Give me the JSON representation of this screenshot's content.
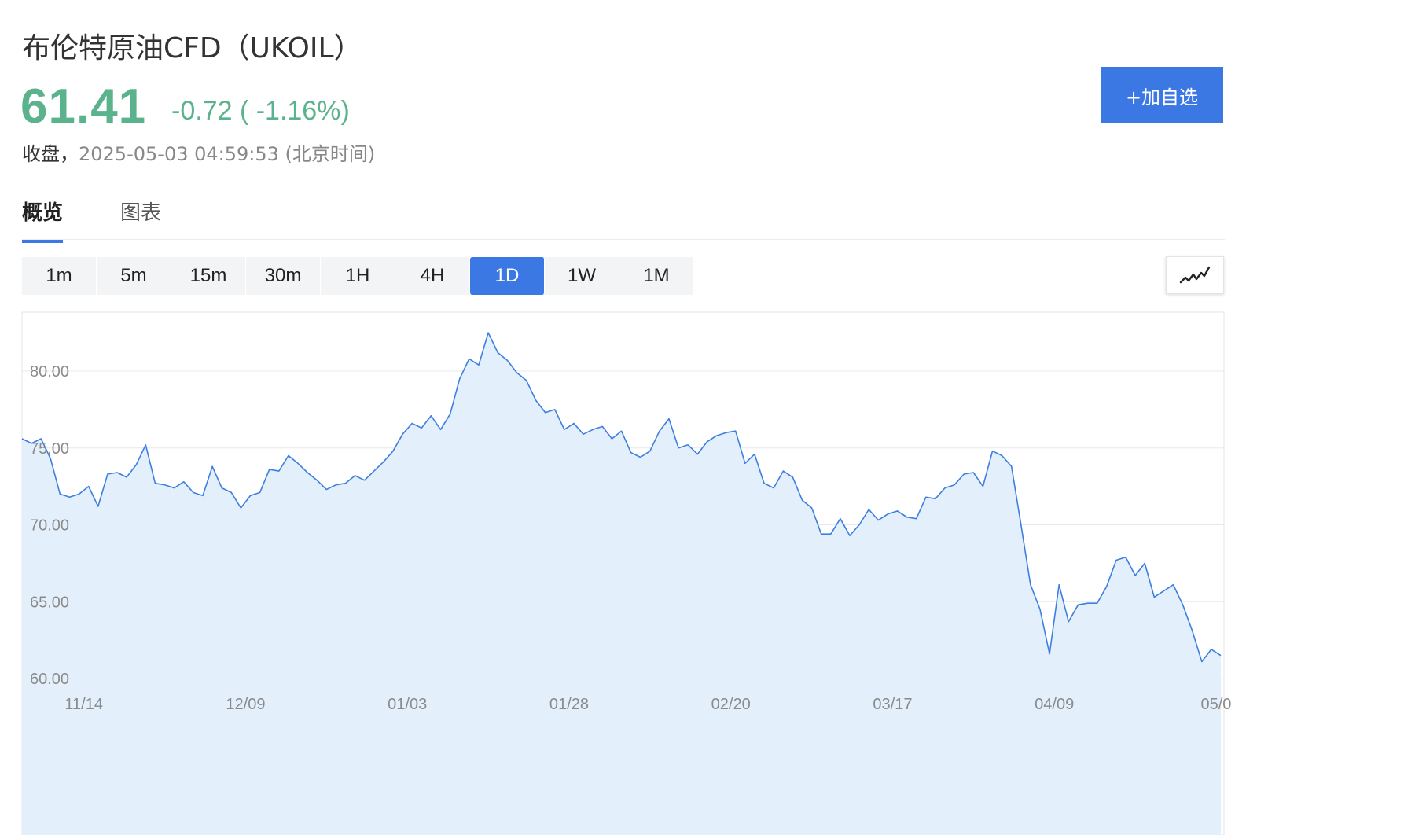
{
  "header": {
    "title": "布伦特原油CFD（UKOIL）",
    "price": "61.41",
    "change": "-0.72 ( -1.16%)",
    "status_label": "收盘，",
    "timestamp": "2025-05-03 04:59:53 (北京时间)",
    "add_watchlist_label": "+加自选"
  },
  "colors": {
    "accent": "#3b78e3",
    "price_down": "#5ab38d",
    "line": "#3d7fe0",
    "fill": "#e3effb"
  },
  "tabs": [
    {
      "label": "概览",
      "active": true
    },
    {
      "label": "图表",
      "active": false
    }
  ],
  "intervals": [
    {
      "label": "1m"
    },
    {
      "label": "5m"
    },
    {
      "label": "15m"
    },
    {
      "label": "30m"
    },
    {
      "label": "1H"
    },
    {
      "label": "4H"
    },
    {
      "label": "1D",
      "active": true
    },
    {
      "label": "1W"
    },
    {
      "label": "1M"
    }
  ],
  "chart_type_icon": "line-chart-icon",
  "chart_data": {
    "type": "area",
    "title": "",
    "xlabel": "",
    "ylabel": "",
    "ylim": [
      58.5,
      83.8
    ],
    "grid": true,
    "y_ticks": [
      "80.00",
      "75.00",
      "70.00",
      "65.00",
      "60.00"
    ],
    "y_tick_values": [
      80,
      75,
      70,
      65,
      60
    ],
    "x_ticks": [
      "11/14",
      "12/09",
      "01/03",
      "01/28",
      "02/20",
      "03/17",
      "04/09",
      "05/0"
    ],
    "x_tick_positions": [
      6.5,
      23.5,
      40.5,
      57.5,
      74.5,
      91.5,
      108.5,
      125.5
    ],
    "series": [
      {
        "values": [
          75.6,
          75.3,
          75.6,
          74.3,
          72.0,
          71.8,
          72.0,
          72.5,
          71.2,
          73.3,
          73.4,
          73.1,
          73.9,
          75.2,
          72.7,
          72.6,
          72.4,
          72.8,
          72.1,
          71.9,
          73.8,
          72.4,
          72.1,
          71.1,
          71.9,
          72.1,
          73.6,
          73.5,
          74.5,
          74.0,
          73.4,
          72.9,
          72.3,
          72.6,
          72.7,
          73.2,
          72.9,
          73.5,
          74.1,
          74.8,
          75.9,
          76.6,
          76.3,
          77.1,
          76.2,
          77.2,
          79.5,
          80.8,
          80.4,
          82.5,
          81.2,
          80.7,
          79.9,
          79.4,
          78.1,
          77.3,
          77.5,
          76.2,
          76.6,
          75.9,
          76.2,
          76.4,
          75.6,
          76.1,
          74.7,
          74.4,
          74.8,
          76.1,
          76.9,
          75.0,
          75.2,
          74.6,
          75.4,
          75.8,
          76.0,
          76.1,
          74.0,
          74.6,
          72.7,
          72.4,
          73.5,
          73.1,
          71.6,
          71.1,
          69.4,
          69.4,
          70.4,
          69.3,
          70.0,
          71.0,
          70.3,
          70.7,
          70.9,
          70.5,
          70.4,
          71.8,
          71.7,
          72.4,
          72.6,
          73.3,
          73.4,
          72.5,
          74.8,
          74.5,
          73.8,
          70.0,
          66.1,
          64.5,
          61.6,
          66.1,
          63.7,
          64.8,
          64.9,
          64.9,
          66.0,
          67.7,
          67.9,
          66.7,
          67.5,
          65.3,
          65.7,
          66.1,
          64.8,
          63.1,
          61.1,
          61.9,
          61.5
        ]
      }
    ]
  }
}
